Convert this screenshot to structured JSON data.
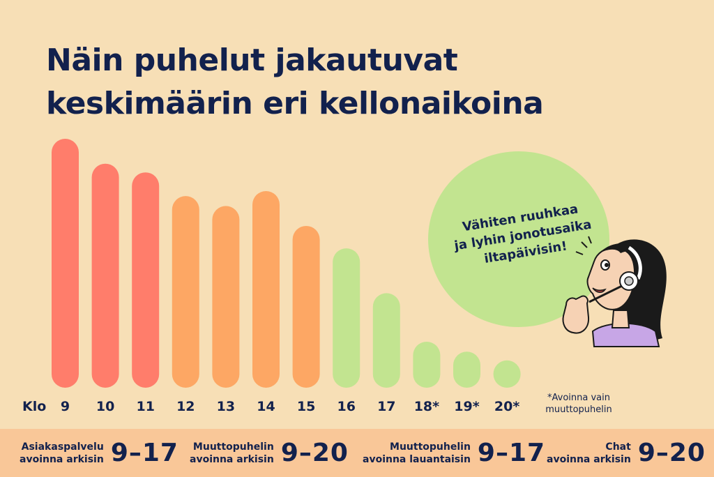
{
  "title": {
    "line1": "Näin puhelut jakautuvat",
    "line2": "keskimäärin eri kellonaikoina"
  },
  "chart_data": {
    "type": "bar",
    "x_prefix": "Klo",
    "categories": [
      "9",
      "10",
      "11",
      "12",
      "13",
      "14",
      "15",
      "16",
      "17",
      "18*",
      "19*",
      "20*"
    ],
    "values": [
      100,
      90,
      86.5,
      77,
      73,
      79,
      65,
      56,
      38,
      18.5,
      14.5,
      11
    ],
    "value_unit": "relative share of calls (no axis values shown)",
    "bar_colors": [
      "#ff7d6b",
      "#ff7d6b",
      "#ff7d6b",
      "#fda764",
      "#fda764",
      "#fda764",
      "#fda764",
      "#c2e490",
      "#c2e490",
      "#c2e490",
      "#c2e490",
      "#c2e490"
    ],
    "ylim": [
      0,
      100
    ],
    "grid": false,
    "legend": "none",
    "footnote": [
      "*Avoinna vain",
      "muuttopuhelin"
    ]
  },
  "callout": {
    "line1": "Vähiten ruuhkaa",
    "line2": "ja lyhin jonotusaika",
    "line3": "iltapäivisin!"
  },
  "footer": {
    "items": [
      {
        "label1": "Asiakaspalvelu",
        "label2": "avoinna arkisin",
        "hours": "9–17"
      },
      {
        "label1": "Muuttopuhelin",
        "label2": "avoinna arkisin",
        "hours": "9–20"
      },
      {
        "label1": "Muuttopuhelin",
        "label2": "avoinna lauantaisin",
        "hours": "9–17"
      },
      {
        "label1": "Chat",
        "label2": "avoinna arkisin",
        "hours": "9–20"
      }
    ]
  },
  "colors": {
    "background": "#f7dfb6",
    "text": "#12214d",
    "high": "#ff7d6b",
    "medium": "#fda764",
    "low": "#c2e490",
    "footer": "#f9c798"
  }
}
